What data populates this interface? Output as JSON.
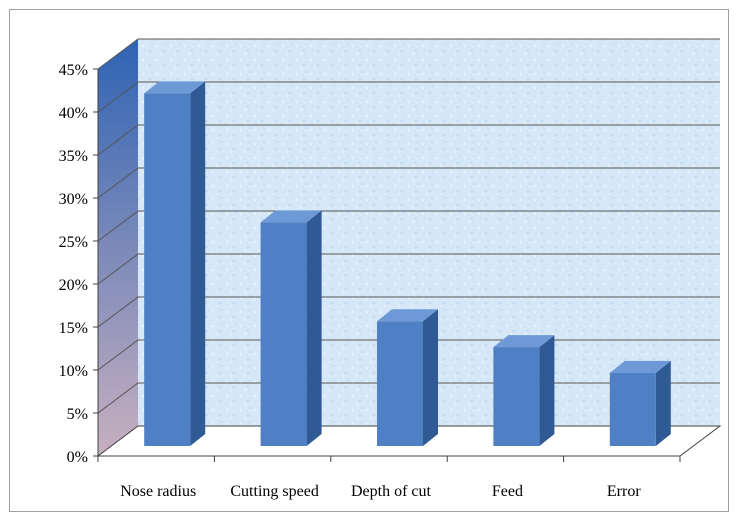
{
  "chart_data": {
    "type": "bar",
    "style": "3d-column",
    "categories": [
      "Nose radius",
      "Cutting speed",
      "Depth of cut",
      "Feed",
      "Error"
    ],
    "values": [
      41,
      26,
      14.5,
      11.5,
      8.5
    ],
    "value_unit": "%",
    "y_ticks": [
      "0%",
      "5%",
      "10%",
      "15%",
      "20%",
      "25%",
      "30%",
      "35%",
      "40%",
      "45%"
    ],
    "ylim": [
      0,
      45
    ],
    "title": "",
    "xlabel": "",
    "ylabel": "",
    "grid": true,
    "legend": "none",
    "colors": {
      "bar_front": "#4f7fc4",
      "bar_side": "#2f5a94",
      "bar_top": "#6d9ad6",
      "back_wall": "#d6e8f7",
      "side_wall_top": "#2e63b3",
      "side_wall_bottom": "#c8b0c0",
      "gridline": "#555555",
      "frame": "#a0a0a0"
    }
  }
}
